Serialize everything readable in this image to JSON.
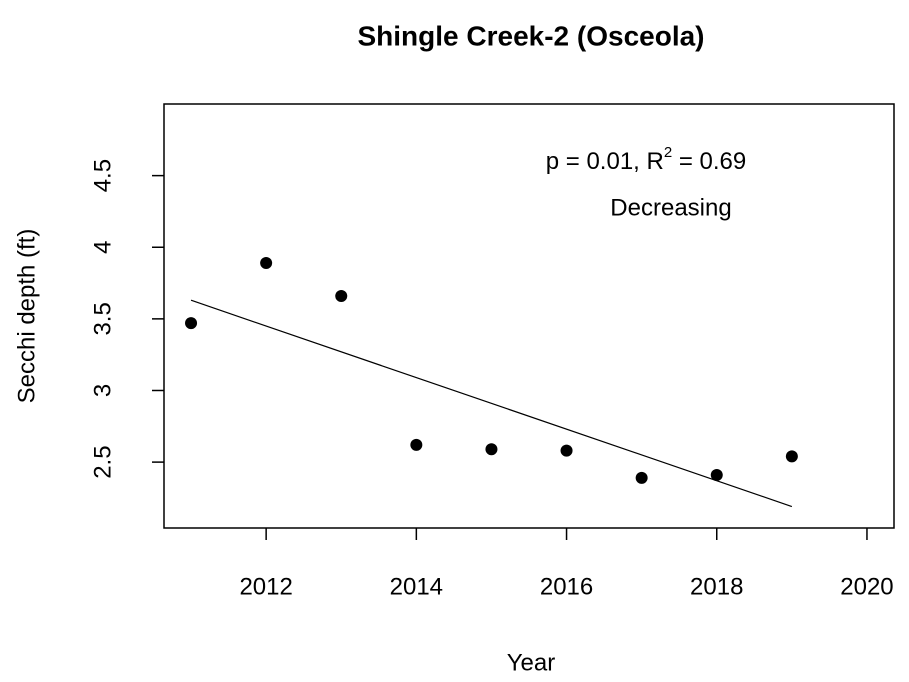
{
  "chart_data": {
    "type": "scatter",
    "title": "Shingle Creek-2 (Osceola)",
    "x_label": "Year",
    "y_label": "Secchi depth (ft)",
    "x": [
      2011,
      2012,
      2013,
      2014,
      2015,
      2016,
      2017,
      2018,
      2019
    ],
    "values": [
      3.47,
      3.89,
      3.66,
      2.62,
      2.59,
      2.58,
      2.39,
      2.41,
      2.54
    ],
    "color": "#000000",
    "trend_line": {
      "x": [
        2011,
        2019
      ],
      "y": [
        3.63,
        2.19
      ]
    },
    "annotation": {
      "stat": "p = 0.01, R",
      "sup": "2",
      "r2": " = 0.69",
      "trend": "Decreasing"
    },
    "xlim": [
      2010.64,
      2020.36
    ],
    "ylim": [
      2.04,
      5.0
    ],
    "xticks": [
      2012,
      2014,
      2016,
      2018,
      2020
    ],
    "yticks": [
      2.5,
      3.0,
      3.5,
      4.0,
      4.5
    ],
    "grid": false
  }
}
